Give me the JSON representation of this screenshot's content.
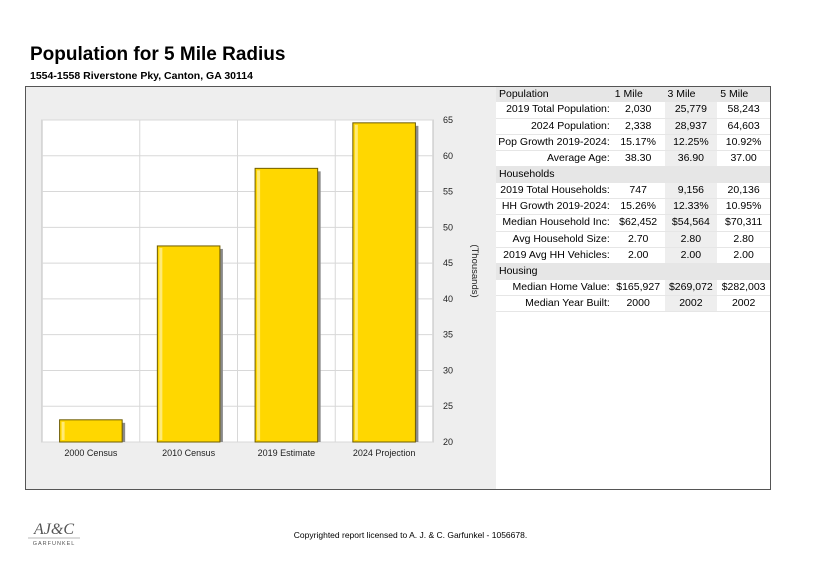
{
  "header": {
    "title": "Population for 5 Mile Radius",
    "address": "1554-1558 Riverstone Pky, Canton, GA 30114"
  },
  "chart_data": {
    "type": "bar",
    "categories": [
      "2000 Census",
      "2010 Census",
      "2019 Estimate",
      "2024 Projection"
    ],
    "values": [
      23.1,
      47.4,
      58.243,
      64.603
    ],
    "ylabel": "(Thousands)",
    "ylim": [
      20,
      65
    ],
    "yticks": [
      20,
      25,
      30,
      35,
      40,
      45,
      50,
      55,
      60,
      65
    ],
    "grid": true,
    "bar_color": "#FFD700"
  },
  "table": {
    "columns": [
      "1 Mile",
      "3 Mile",
      "5 Mile"
    ],
    "sections": [
      {
        "name": "Population",
        "rows": [
          {
            "label": "2019 Total Population:",
            "values": [
              "2,030",
              "25,779",
              "58,243"
            ]
          },
          {
            "label": "2024 Population:",
            "values": [
              "2,338",
              "28,937",
              "64,603"
            ]
          },
          {
            "label": "Pop Growth 2019-2024:",
            "values": [
              "15.17%",
              "12.25%",
              "10.92%"
            ]
          },
          {
            "label": "Average Age:",
            "values": [
              "38.30",
              "36.90",
              "37.00"
            ]
          }
        ]
      },
      {
        "name": "Households",
        "rows": [
          {
            "label": "2019 Total Households:",
            "values": [
              "747",
              "9,156",
              "20,136"
            ]
          },
          {
            "label": "HH Growth 2019-2024:",
            "values": [
              "15.26%",
              "12.33%",
              "10.95%"
            ]
          },
          {
            "label": "Median Household Inc:",
            "values": [
              "$62,452",
              "$54,564",
              "$70,311"
            ]
          },
          {
            "label": "Avg Household Size:",
            "values": [
              "2.70",
              "2.80",
              "2.80"
            ]
          },
          {
            "label": "2019 Avg HH Vehicles:",
            "values": [
              "2.00",
              "2.00",
              "2.00"
            ]
          }
        ]
      },
      {
        "name": "Housing",
        "rows": [
          {
            "label": "Median Home Value:",
            "values": [
              "$165,927",
              "$269,072",
              "$282,003"
            ]
          },
          {
            "label": "Median Year Built:",
            "values": [
              "2000",
              "2002",
              "2002"
            ]
          }
        ]
      }
    ]
  },
  "footer": {
    "copyright": "Copyrighted report licensed to A. J. & C. Garfunkel - 1056678.",
    "logo_text": "AJ&C",
    "logo_subtext": "GARFUNKEL"
  }
}
